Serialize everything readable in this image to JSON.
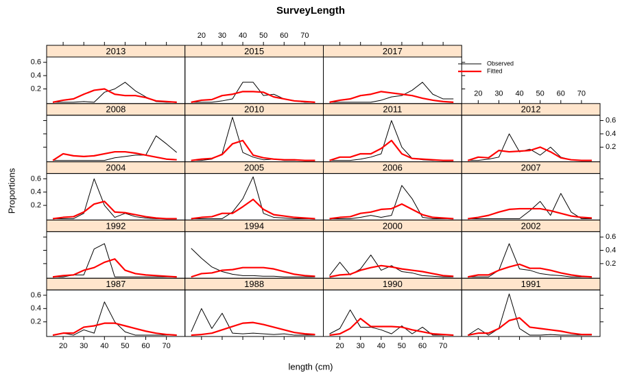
{
  "chart_data": {
    "type": "line",
    "title": "SurveyLength",
    "x_label": "length (cm)",
    "y_label": "Proportions",
    "x": [
      15,
      20,
      25,
      30,
      35,
      40,
      45,
      50,
      55,
      60,
      65,
      70,
      75
    ],
    "xlim": [
      12,
      79
    ],
    "ylim": [
      -0.02,
      0.68
    ],
    "xticks": [
      20,
      30,
      40,
      50,
      60,
      70
    ],
    "yticks": [
      0.2,
      0.4,
      0.6
    ],
    "legend": [
      {
        "name": "Observed",
        "color": "#000000"
      },
      {
        "name": "Fitted",
        "color": "#ff0000"
      }
    ],
    "panels": [
      {
        "title": "1987",
        "values": [
          [
            0,
            0.03,
            0,
            0.08,
            0.03,
            0.5,
            0.2,
            0.05,
            0,
            0,
            0,
            0,
            0
          ],
          [
            0,
            0.03,
            0.03,
            0.12,
            0.14,
            0.18,
            0.18,
            0.14,
            0.1,
            0.06,
            0.03,
            0.01,
            0
          ]
        ]
      },
      {
        "title": "1988",
        "values": [
          [
            0.05,
            0.4,
            0.1,
            0.33,
            0.03,
            0.02,
            0.03,
            0.02,
            0.01,
            0.02,
            0,
            0,
            0
          ],
          [
            0,
            0.01,
            0.03,
            0.08,
            0.13,
            0.18,
            0.19,
            0.16,
            0.12,
            0.08,
            0.04,
            0.02,
            0.01
          ]
        ]
      },
      {
        "title": "1990",
        "values": [
          [
            0.02,
            0.1,
            0.38,
            0.12,
            0.12,
            0.08,
            0.02,
            0.14,
            0.02,
            0.12,
            0,
            0,
            0
          ],
          [
            0,
            0.02,
            0.1,
            0.25,
            0.13,
            0.13,
            0.13,
            0.12,
            0.08,
            0.05,
            0.02,
            0.01,
            0
          ]
        ]
      },
      {
        "title": "1991",
        "values": [
          [
            0,
            0.1,
            0,
            0.1,
            0.62,
            0.1,
            0,
            0,
            0.01,
            0,
            0,
            0,
            0
          ],
          [
            0,
            0.03,
            0.03,
            0.1,
            0.22,
            0.26,
            0.12,
            0.1,
            0.08,
            0.06,
            0.03,
            0.01,
            0.01
          ]
        ]
      },
      {
        "title": "1992",
        "values": [
          [
            0,
            0,
            0.03,
            0.03,
            0.42,
            0.5,
            0,
            0,
            0,
            0,
            0,
            0,
            0
          ],
          [
            0,
            0.02,
            0.03,
            0.1,
            0.14,
            0.22,
            0.27,
            0.1,
            0.05,
            0.03,
            0.02,
            0.01,
            0
          ]
        ]
      },
      {
        "title": "1994",
        "values": [
          [
            0.43,
            0.28,
            0.15,
            0.08,
            0.04,
            0.02,
            0.02,
            0.01,
            0.01,
            0,
            0,
            0,
            0
          ],
          [
            0,
            0.05,
            0.06,
            0.1,
            0.11,
            0.14,
            0.14,
            0.14,
            0.12,
            0.08,
            0.04,
            0.02,
            0.01
          ]
        ]
      },
      {
        "title": "2000",
        "values": [
          [
            0.02,
            0.22,
            0.03,
            0.12,
            0.33,
            0.1,
            0.17,
            0.08,
            0.06,
            0.02,
            0.01,
            0,
            0
          ],
          [
            0,
            0.03,
            0.04,
            0.1,
            0.14,
            0.17,
            0.15,
            0.12,
            0.1,
            0.08,
            0.05,
            0.02,
            0.01
          ]
        ]
      },
      {
        "title": "2002",
        "values": [
          [
            0,
            0,
            0,
            0.1,
            0.5,
            0.12,
            0.1,
            0.05,
            0.03,
            0.02,
            0,
            0,
            0
          ],
          [
            0,
            0.03,
            0.03,
            0.1,
            0.15,
            0.19,
            0.13,
            0.13,
            0.1,
            0.06,
            0.03,
            0.01,
            0
          ]
        ]
      },
      {
        "title": "2004",
        "values": [
          [
            0,
            0,
            0,
            0.08,
            0.6,
            0.2,
            0.02,
            0.08,
            0.03,
            0.01,
            0,
            0,
            0
          ],
          [
            0,
            0.02,
            0.03,
            0.1,
            0.22,
            0.26,
            0.1,
            0.09,
            0.06,
            0.03,
            0.01,
            0,
            0
          ]
        ]
      },
      {
        "title": "2005",
        "values": [
          [
            0,
            0,
            0,
            0,
            0.1,
            0.3,
            0.63,
            0.08,
            0.02,
            0.01,
            0,
            0,
            0
          ],
          [
            0,
            0.02,
            0.03,
            0.08,
            0.08,
            0.18,
            0.29,
            0.14,
            0.06,
            0.04,
            0.02,
            0.01,
            0
          ]
        ]
      },
      {
        "title": "2006",
        "values": [
          [
            0,
            0,
            0,
            0.02,
            0.05,
            0.02,
            0.05,
            0.5,
            0.3,
            0.02,
            0,
            0,
            0
          ],
          [
            0,
            0.02,
            0.03,
            0.08,
            0.1,
            0.14,
            0.15,
            0.22,
            0.14,
            0.06,
            0.02,
            0.01,
            0
          ]
        ]
      },
      {
        "title": "2007",
        "values": [
          [
            0,
            0,
            0,
            0,
            0,
            0,
            0.12,
            0.26,
            0.05,
            0.38,
            0.1,
            0,
            0
          ],
          [
            0,
            0.02,
            0.05,
            0.1,
            0.14,
            0.15,
            0.15,
            0.15,
            0.12,
            0.08,
            0.04,
            0.02,
            0.01
          ]
        ]
      },
      {
        "title": "2008",
        "values": [
          [
            0,
            0,
            0,
            0,
            0,
            0,
            0.04,
            0.06,
            0.08,
            0.08,
            0.37,
            0.25,
            0.12
          ],
          [
            0,
            0.1,
            0.07,
            0.06,
            0.07,
            0.1,
            0.13,
            0.13,
            0.11,
            0.08,
            0.05,
            0.02,
            0.01
          ]
        ]
      },
      {
        "title": "2010",
        "values": [
          [
            0,
            0,
            0.02,
            0.1,
            0.65,
            0.12,
            0.05,
            0.01,
            0.02,
            0,
            0,
            0,
            0
          ],
          [
            0,
            0.02,
            0.03,
            0.09,
            0.25,
            0.3,
            0.08,
            0.04,
            0.02,
            0.01,
            0.01,
            0,
            0
          ]
        ]
      },
      {
        "title": "2011",
        "values": [
          [
            0,
            0,
            0,
            0.02,
            0.05,
            0.1,
            0.6,
            0.2,
            0.03,
            0.01,
            0,
            0,
            0
          ],
          [
            0,
            0.05,
            0.05,
            0.1,
            0.1,
            0.18,
            0.3,
            0.1,
            0.03,
            0.02,
            0.01,
            0,
            0
          ]
        ]
      },
      {
        "title": "2012",
        "values": [
          [
            0,
            0,
            0.02,
            0.05,
            0.4,
            0.13,
            0.17,
            0.08,
            0.2,
            0.05,
            0.01,
            0,
            0
          ],
          [
            0,
            0.05,
            0.04,
            0.15,
            0.13,
            0.14,
            0.15,
            0.2,
            0.13,
            0.04,
            0.01,
            0,
            0
          ]
        ]
      },
      {
        "title": "2013",
        "values": [
          [
            0,
            0,
            0,
            0.01,
            0,
            0.15,
            0.2,
            0.3,
            0.17,
            0.08,
            0.01,
            0,
            0
          ],
          [
            0,
            0.03,
            0.05,
            0.12,
            0.18,
            0.2,
            0.12,
            0.1,
            0.1,
            0.07,
            0.02,
            0.01,
            0
          ]
        ]
      },
      {
        "title": "2015",
        "values": [
          [
            0,
            0,
            0,
            0.02,
            0.05,
            0.3,
            0.3,
            0.1,
            0.12,
            0.05,
            0.02,
            0,
            0
          ],
          [
            0,
            0.03,
            0.04,
            0.1,
            0.12,
            0.16,
            0.16,
            0.15,
            0.08,
            0.05,
            0.02,
            0.01,
            0
          ]
        ]
      },
      {
        "title": "2017",
        "values": [
          [
            0,
            0,
            0,
            0,
            0,
            0.03,
            0.08,
            0.1,
            0.18,
            0.3,
            0.12,
            0.05,
            0.05
          ],
          [
            0,
            0.03,
            0.05,
            0.1,
            0.12,
            0.16,
            0.14,
            0.12,
            0.1,
            0.06,
            0.03,
            0.01,
            0
          ]
        ]
      }
    ]
  }
}
